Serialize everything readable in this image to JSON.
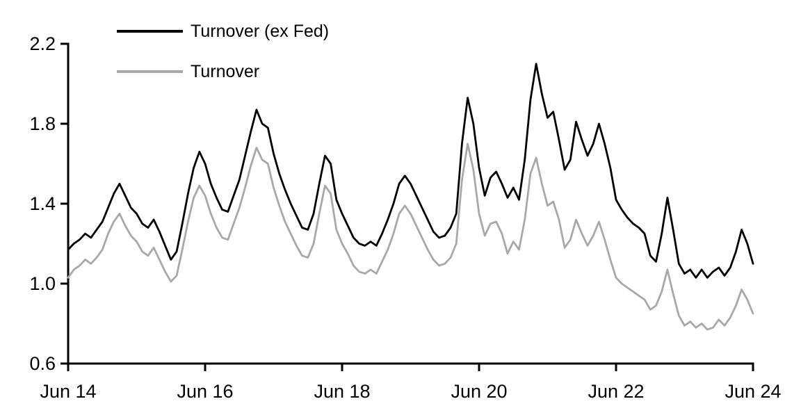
{
  "figure": {
    "background": "#ffffff",
    "series_black_color": "#000000",
    "series_gray_color": "#a8a8a8",
    "axis_color": "#000000"
  },
  "legend": {
    "items": [
      {
        "label": "Turnover (ex Fed)",
        "color": "#000000"
      },
      {
        "label": "Turnover",
        "color": "#a8a8a8"
      }
    ]
  },
  "chart_data": {
    "type": "line",
    "title": "",
    "xlabel": "",
    "ylabel": "",
    "ylim": [
      0.6,
      2.2
    ],
    "y_ticks": [
      2.2,
      1.8,
      1.4,
      1.0,
      0.6
    ],
    "x_range": [
      "Jun 2014",
      "Jun 2024"
    ],
    "x_step": "monthly",
    "x_ticks": [
      {
        "pos": 0,
        "label": "Jun 14"
      },
      {
        "pos": 24,
        "label": "Jun 16"
      },
      {
        "pos": 48,
        "label": "Jun 18"
      },
      {
        "pos": 72,
        "label": "Jun 20"
      },
      {
        "pos": 96,
        "label": "Jun 22"
      },
      {
        "pos": 120,
        "label": "Jun 24"
      }
    ],
    "grid": false,
    "legend_position": "top-left-inside",
    "series": [
      {
        "id": "turnover",
        "name": "Turnover",
        "color": "#a8a8a8",
        "values": [
          1.03,
          1.07,
          1.09,
          1.12,
          1.1,
          1.13,
          1.17,
          1.25,
          1.31,
          1.35,
          1.29,
          1.24,
          1.21,
          1.16,
          1.14,
          1.18,
          1.12,
          1.06,
          1.01,
          1.04,
          1.17,
          1.31,
          1.43,
          1.49,
          1.44,
          1.35,
          1.28,
          1.23,
          1.22,
          1.3,
          1.38,
          1.48,
          1.59,
          1.68,
          1.62,
          1.6,
          1.48,
          1.39,
          1.31,
          1.25,
          1.19,
          1.14,
          1.13,
          1.2,
          1.35,
          1.49,
          1.45,
          1.27,
          1.2,
          1.15,
          1.09,
          1.06,
          1.05,
          1.07,
          1.05,
          1.11,
          1.17,
          1.25,
          1.35,
          1.39,
          1.35,
          1.29,
          1.23,
          1.17,
          1.12,
          1.09,
          1.1,
          1.13,
          1.2,
          1.52,
          1.7,
          1.57,
          1.35,
          1.24,
          1.3,
          1.31,
          1.25,
          1.15,
          1.21,
          1.17,
          1.32,
          1.55,
          1.63,
          1.5,
          1.39,
          1.41,
          1.32,
          1.18,
          1.22,
          1.32,
          1.25,
          1.19,
          1.24,
          1.31,
          1.22,
          1.12,
          1.03,
          1.0,
          0.98,
          0.96,
          0.94,
          0.92,
          0.87,
          0.89,
          0.96,
          1.07,
          0.95,
          0.84,
          0.79,
          0.81,
          0.78,
          0.8,
          0.77,
          0.78,
          0.82,
          0.79,
          0.83,
          0.89,
          0.97,
          0.92,
          0.85
        ]
      },
      {
        "id": "turnover_ex_fed",
        "name": "Turnover (ex Fed)",
        "color": "#000000",
        "values": [
          1.17,
          1.2,
          1.22,
          1.25,
          1.23,
          1.27,
          1.31,
          1.38,
          1.45,
          1.5,
          1.44,
          1.38,
          1.35,
          1.3,
          1.28,
          1.32,
          1.26,
          1.19,
          1.12,
          1.16,
          1.3,
          1.45,
          1.58,
          1.66,
          1.6,
          1.5,
          1.43,
          1.37,
          1.36,
          1.44,
          1.52,
          1.64,
          1.76,
          1.87,
          1.8,
          1.78,
          1.65,
          1.55,
          1.47,
          1.4,
          1.34,
          1.28,
          1.27,
          1.35,
          1.5,
          1.64,
          1.6,
          1.42,
          1.35,
          1.29,
          1.23,
          1.2,
          1.19,
          1.21,
          1.19,
          1.25,
          1.32,
          1.4,
          1.5,
          1.54,
          1.5,
          1.44,
          1.38,
          1.32,
          1.26,
          1.23,
          1.24,
          1.28,
          1.35,
          1.7,
          1.93,
          1.8,
          1.58,
          1.44,
          1.53,
          1.56,
          1.5,
          1.43,
          1.48,
          1.42,
          1.62,
          1.92,
          2.1,
          1.95,
          1.83,
          1.86,
          1.72,
          1.57,
          1.62,
          1.81,
          1.72,
          1.64,
          1.7,
          1.8,
          1.7,
          1.58,
          1.42,
          1.37,
          1.33,
          1.3,
          1.28,
          1.25,
          1.14,
          1.11,
          1.25,
          1.43,
          1.27,
          1.1,
          1.05,
          1.07,
          1.03,
          1.07,
          1.03,
          1.06,
          1.08,
          1.04,
          1.08,
          1.16,
          1.27,
          1.2,
          1.1
        ]
      }
    ]
  }
}
